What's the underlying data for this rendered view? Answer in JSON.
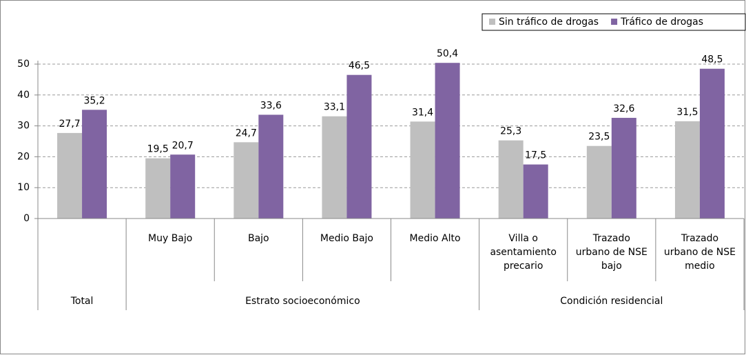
{
  "chart_data": {
    "type": "bar",
    "category_groups": [
      {
        "name": "Total",
        "categories": [
          null
        ]
      },
      {
        "name": "Estrato socioeconómico",
        "categories": [
          "Muy Bajo",
          "Bajo",
          "Medio Bajo",
          "Medio Alto"
        ]
      },
      {
        "name": "Condición residencial",
        "categories": [
          "Villa o\nasentamiento\nprecario",
          "Trazado\nurbano de NSE\nbajo",
          "Trazado\nurbano de NSE\nmedio"
        ]
      }
    ],
    "series": [
      {
        "name": "Sin tráfico de drogas",
        "color": "#bfbfbf",
        "values": [
          27.7,
          19.5,
          24.7,
          33.1,
          31.4,
          25.3,
          23.5,
          31.5
        ],
        "value_labels": [
          "27,7",
          "19,5",
          "24,7",
          "33,1",
          "31,4",
          "25,3",
          "23,5",
          "31,5"
        ]
      },
      {
        "name": "Tráfico de drogas",
        "color": "#8064a2",
        "values": [
          35.2,
          20.7,
          33.6,
          46.5,
          50.4,
          17.5,
          32.6,
          48.5
        ],
        "value_labels": [
          "35,2",
          "20,7",
          "33,6",
          "46,5",
          "50,4",
          "17,5",
          "32,6",
          "48,5"
        ]
      }
    ],
    "ylim": [
      0,
      50
    ],
    "yticks": [
      0,
      10,
      20,
      30,
      40,
      50
    ],
    "grid": true,
    "legend": "top-right"
  }
}
